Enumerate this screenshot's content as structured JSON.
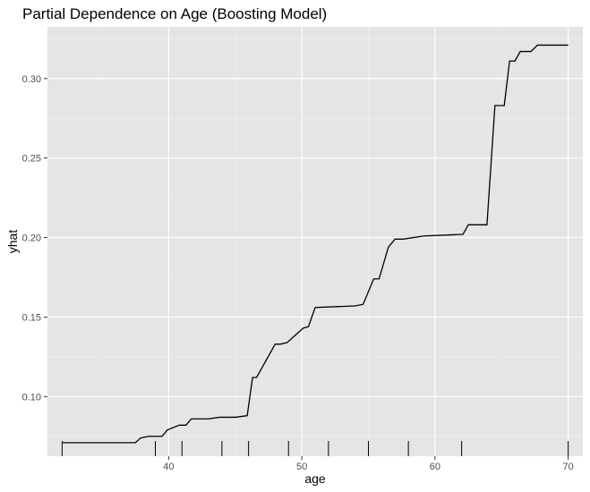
{
  "chart_data": {
    "type": "line",
    "title": "Partial Dependence on Age (Boosting Model)",
    "xlabel": "age",
    "ylabel": "yhat",
    "xlim": [
      30.9,
      71.1
    ],
    "ylim": [
      0.0625,
      0.3325
    ],
    "x_ticks": [
      40,
      50,
      60,
      70
    ],
    "y_ticks": [
      0.1,
      0.15,
      0.2,
      0.25,
      0.3
    ],
    "x_tick_labels": [
      "40",
      "50",
      "60",
      "70"
    ],
    "y_tick_labels": [
      "0.10",
      "0.15",
      "0.20",
      "0.25",
      "0.30"
    ],
    "grid": true,
    "series": [
      {
        "x": [
          32,
          37.5,
          37.9,
          38.5,
          39.5,
          39.9,
          40.8,
          41.3,
          41.7,
          43.0,
          43.8,
          45.0,
          45.9,
          46.3,
          46.6,
          48.0,
          48.4,
          48.9,
          50.1,
          50.5,
          51.0,
          54.0,
          54.6,
          55.4,
          55.8,
          56.5,
          57.0,
          57.6,
          59.2,
          62.1,
          62.5,
          63.9,
          64.5,
          65.2,
          65.6,
          66.0,
          66.4,
          67.2,
          67.7,
          70
        ],
        "y": [
          0.071,
          0.071,
          0.074,
          0.075,
          0.075,
          0.079,
          0.082,
          0.082,
          0.086,
          0.086,
          0.087,
          0.087,
          0.088,
          0.112,
          0.112,
          0.133,
          0.133,
          0.134,
          0.143,
          0.144,
          0.156,
          0.157,
          0.158,
          0.174,
          0.174,
          0.194,
          0.199,
          0.199,
          0.201,
          0.202,
          0.208,
          0.208,
          0.283,
          0.283,
          0.311,
          0.311,
          0.317,
          0.317,
          0.321,
          0.321
        ],
        "color": "#000000"
      }
    ],
    "rug_x": [
      32,
      39,
      41,
      44,
      46,
      49,
      52,
      55,
      58,
      62,
      70
    ],
    "panel_background": "#e5e5e5",
    "major_grid_color": "#ffffff",
    "minor_grid_color": "#f2f2f2"
  }
}
